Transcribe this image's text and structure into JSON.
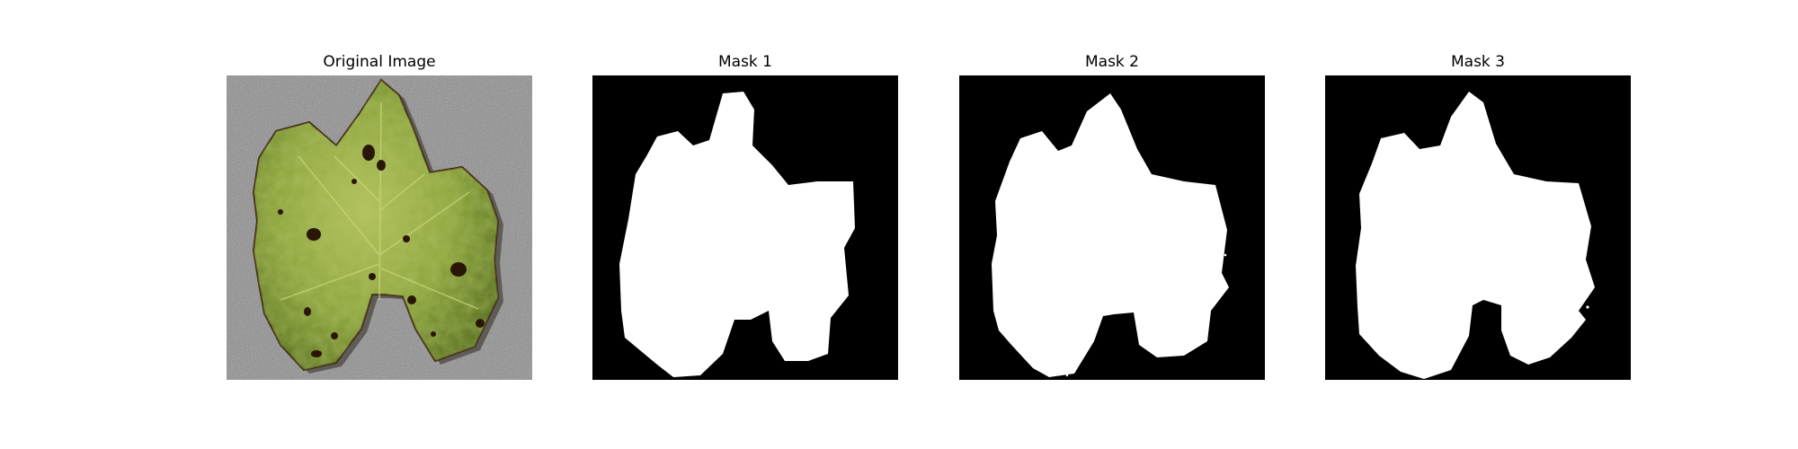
{
  "figure": {
    "panels": [
      {
        "title": "Original Image"
      },
      {
        "title": "Mask 1"
      },
      {
        "title": "Mask 2"
      },
      {
        "title": "Mask 3"
      }
    ]
  },
  "colors": {
    "background": "#ffffff",
    "mask_background": "#000000",
    "mask_foreground": "#ffffff",
    "photo_background": "#8a8a8a",
    "leaf_base": "#8aa33a",
    "leaf_shadow": "#4e6418",
    "leaf_highlight": "#b7c55c",
    "leaf_spot": "#2a1607"
  },
  "icons": {
    "photo": "leaf-photo",
    "masks": "segmentation-mask"
  }
}
